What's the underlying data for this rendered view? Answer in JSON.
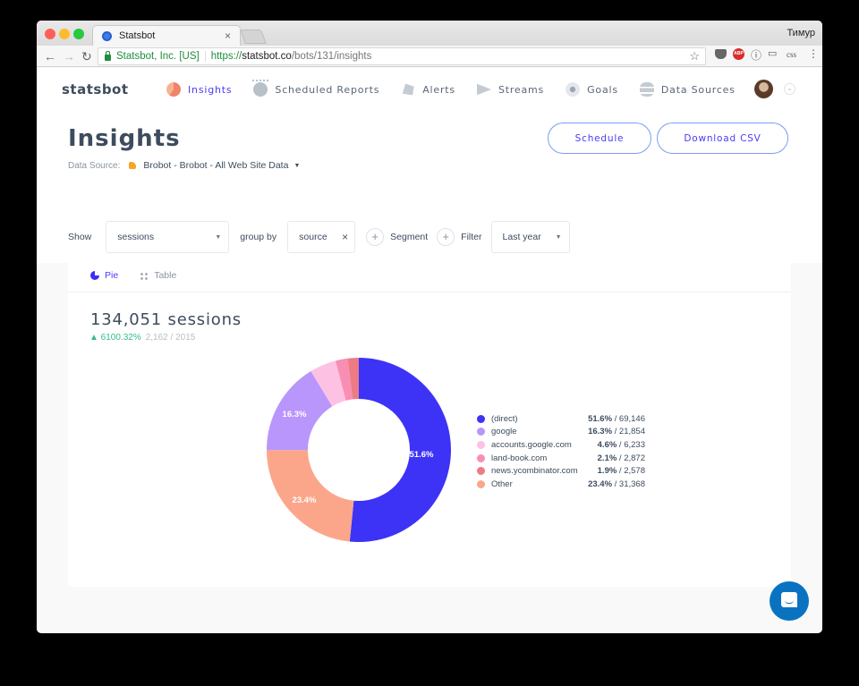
{
  "browser": {
    "tab_title": "Statsbot",
    "profile_name": "Тимур",
    "secure_label": "Statsbot, Inc. [US]",
    "url_scheme": "https://",
    "url_host": "statsbot.co",
    "url_path": "/bots/131/insights",
    "extensions": [
      "pocket-icon",
      "adblock-plus-icon",
      "info-icon",
      "cast-icon",
      "css-icon",
      "menu-icon"
    ],
    "abp_label": "ABP",
    "css_label": "css"
  },
  "header": {
    "logo": "statsbot",
    "nav": [
      {
        "label": "Insights",
        "icon": "pie-chart-icon",
        "active": true
      },
      {
        "label": "Scheduled Reports",
        "icon": "alarm-clock-icon",
        "active": false
      },
      {
        "label": "Alerts",
        "icon": "bell-icon",
        "active": false
      },
      {
        "label": "Streams",
        "icon": "play-stream-icon",
        "active": false
      },
      {
        "label": "Goals",
        "icon": "target-icon",
        "active": false
      },
      {
        "label": "Data Sources",
        "icon": "layers-icon",
        "active": false
      }
    ]
  },
  "page": {
    "title": "Insights",
    "data_source_label": "Data Source:",
    "data_source_value": "Brobot - Brobot - All Web Site Data",
    "schedule_button": "Schedule",
    "download_button": "Download CSV"
  },
  "query": {
    "show_label": "Show",
    "metric": "sessions",
    "group_by_label": "group by",
    "group_by_value": "source",
    "segment_label": "Segment",
    "filter_label": "Filter",
    "period": "Last year"
  },
  "card": {
    "tabs": [
      {
        "label": "Pie",
        "active": true
      },
      {
        "label": "Table",
        "active": false
      }
    ],
    "total": "134,051 sessions",
    "delta_pct": "▲ 6100.32%",
    "delta_ref": "2,162 / 2015"
  },
  "chart_data": {
    "type": "pie",
    "variant": "donut",
    "title": "134,051 sessions",
    "metric": "sessions",
    "group_by": "source",
    "categories": [
      "(direct)",
      "google",
      "accounts.google.com",
      "land-book.com",
      "news.ycombinator.com",
      "Other"
    ],
    "values": [
      69146,
      21854,
      6233,
      2872,
      2578,
      31368
    ],
    "percentages": [
      51.6,
      16.3,
      4.6,
      2.1,
      1.9,
      23.4
    ],
    "colors": [
      "#3d33f6",
      "#b896fb",
      "#fdc1e3",
      "#f98eb4",
      "#ec7b86",
      "#fba68b"
    ],
    "slice_labels_shown": [
      "51.6%",
      "16.3%",
      "23.4%"
    ],
    "legend_position": "right"
  },
  "legend": [
    {
      "label": "(direct)",
      "pct": "51.6%",
      "count": " / 69,146",
      "color": "#3d33f6"
    },
    {
      "label": "google",
      "pct": "16.3%",
      "count": " / 21,854",
      "color": "#b896fb"
    },
    {
      "label": "accounts.google.com",
      "pct": "4.6%",
      "count": " / 6,233",
      "color": "#fdc1e3"
    },
    {
      "label": "land-book.com",
      "pct": "2.1%",
      "count": " / 2,872",
      "color": "#f98eb4"
    },
    {
      "label": "news.ycombinator.com",
      "pct": "1.9%",
      "count": " / 2,578",
      "color": "#ec7b86"
    },
    {
      "label": "Other",
      "pct": "23.4%",
      "count": " / 31,368",
      "color": "#fba68b"
    }
  ],
  "donut_labels": {
    "direct": "51.6%",
    "google": "16.3%",
    "other": "23.4%"
  },
  "colors": {
    "accent": "#4a3cf5",
    "positive": "#2fbf85",
    "chat": "#0a73c1"
  }
}
